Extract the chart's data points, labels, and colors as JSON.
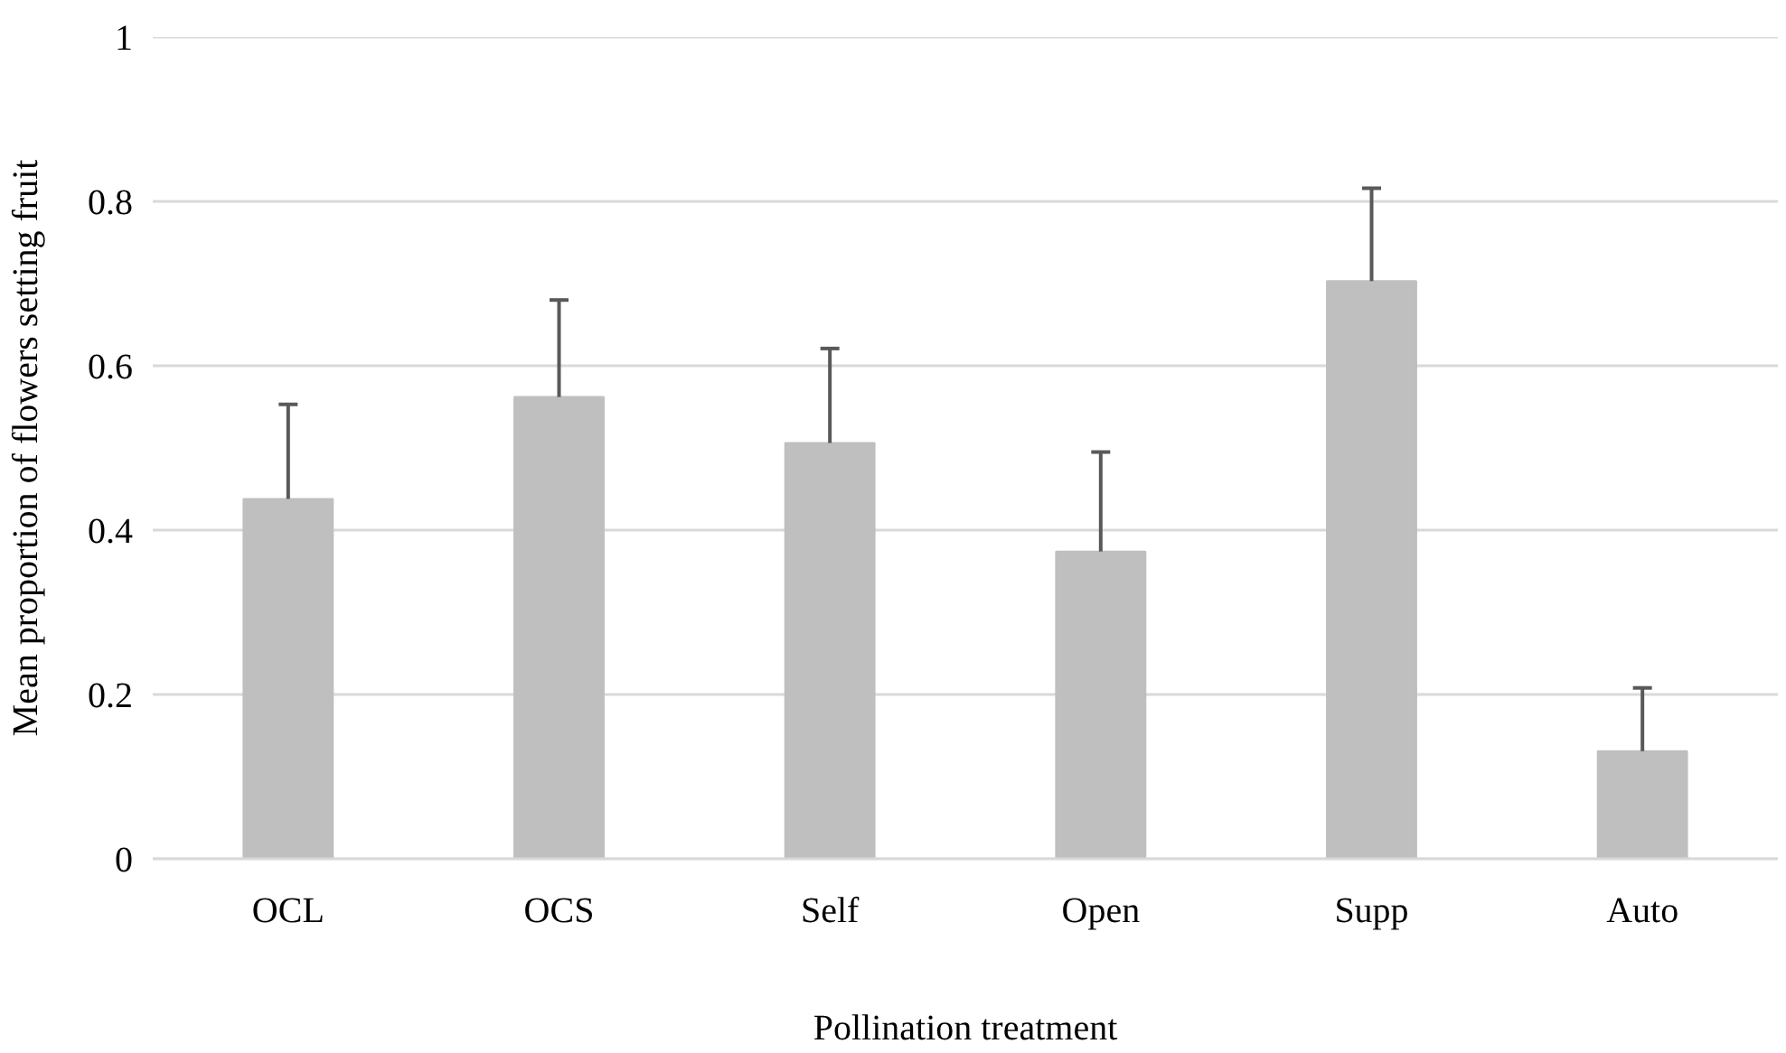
{
  "chart_data": {
    "type": "bar",
    "xlabel": "Pollination treatment",
    "ylabel": "Mean proportion of flowers setting fruit",
    "categories": [
      "OCL",
      "OCS",
      "Self",
      "Open",
      "Supp",
      "Auto"
    ],
    "values": [
      0.438,
      0.562,
      0.506,
      0.374,
      0.703,
      0.131
    ],
    "errors": [
      [
        0.438,
        0.553
      ],
      [
        0.562,
        0.68
      ],
      [
        0.506,
        0.621
      ],
      [
        0.374,
        0.495
      ],
      [
        0.703,
        0.816
      ],
      [
        0.131,
        0.208
      ]
    ],
    "color": "#bfbfbf",
    "ylim": [
      0,
      1
    ],
    "yticks": [
      0,
      0.2,
      0.4,
      0.6,
      0.8,
      1
    ],
    "grid": "y"
  }
}
